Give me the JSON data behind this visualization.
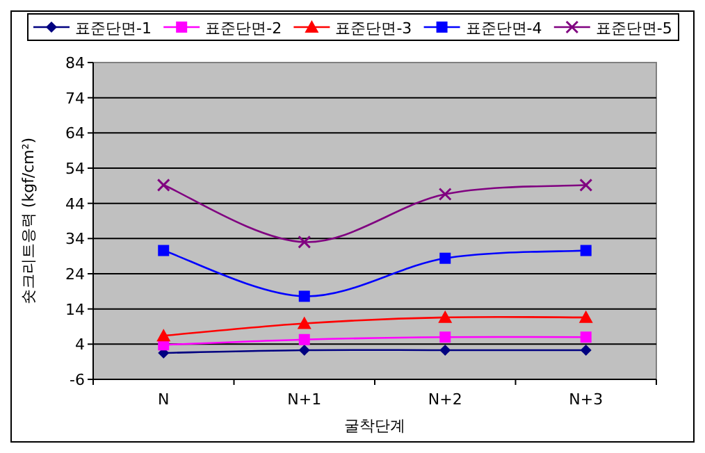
{
  "chart_data": {
    "type": "line",
    "xlabel": "굴착단계",
    "ylabel": "숏크리트응력 (kgf/cm²)",
    "categories": [
      "N",
      "N+1",
      "N+2",
      "N+3"
    ],
    "series": [
      {
        "name": "표준단면-1",
        "color": "#000080",
        "marker": "diamond",
        "values": [
          1.5,
          2.3,
          2.3,
          2.3
        ]
      },
      {
        "name": "표준단면-2",
        "color": "#ff00ff",
        "marker": "square",
        "values": [
          3.8,
          5.3,
          6,
          6
        ]
      },
      {
        "name": "표준단면-3",
        "color": "#ff0000",
        "marker": "triangle",
        "values": [
          6.4,
          9.9,
          11.6,
          11.6
        ]
      },
      {
        "name": "표준단면-4",
        "color": "#0000ff",
        "marker": "square",
        "values": [
          30.6,
          17.6,
          28.4,
          30.6
        ]
      },
      {
        "name": "표준단면-5",
        "color": "#800080",
        "marker": "cross",
        "values": [
          49.2,
          33,
          46.6,
          49.2
        ]
      }
    ],
    "ylim": [
      -6,
      84
    ],
    "yticks": [
      -6,
      4,
      14,
      24,
      34,
      44,
      54,
      64,
      74,
      84
    ],
    "grid": "y",
    "legend": "top",
    "line_style": "solid"
  }
}
